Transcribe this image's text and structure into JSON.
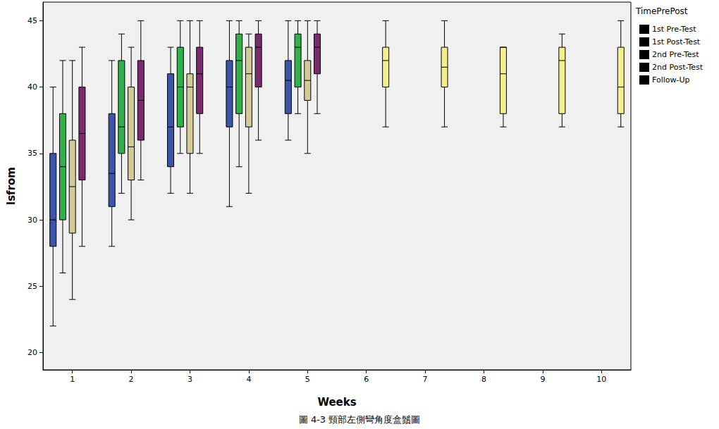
{
  "chart_data": {
    "type": "boxplot",
    "title": "圖 4-3 頸部左側彎角度盒鬚圖",
    "x_label": "Weeks",
    "y_label": "lsfrom",
    "legend_title": "TimePrePost",
    "legend": "right",
    "grid": false,
    "categories": [
      "1",
      "2",
      "3",
      "4",
      "5",
      "6",
      "7",
      "8",
      "9",
      "10"
    ],
    "ylim": [
      18.7,
      46.4
    ],
    "yticks": [
      20,
      25,
      30,
      35,
      40,
      45
    ],
    "series": [
      {
        "name": "1st Pre-Test",
        "color": "#3d55a8",
        "values": [
          [
            22,
            28,
            30,
            35,
            40
          ],
          [
            28,
            31,
            33.5,
            38,
            42
          ],
          [
            32,
            34,
            37,
            41,
            43
          ],
          [
            31,
            37,
            40,
            42,
            45
          ],
          [
            36,
            38,
            40.5,
            42,
            45
          ],
          null,
          null,
          null,
          null,
          null
        ]
      },
      {
        "name": "1st Post-Test",
        "color": "#2fb04a",
        "values": [
          [
            26,
            30,
            34,
            38,
            42
          ],
          [
            32,
            35,
            37,
            42,
            44
          ],
          [
            35,
            37,
            40,
            43,
            45
          ],
          [
            34,
            38,
            42,
            44,
            45
          ],
          [
            38,
            40,
            43,
            44,
            45
          ],
          null,
          null,
          null,
          null,
          null
        ]
      },
      {
        "name": "2nd Pre-Test",
        "color": "#d2ca97",
        "values": [
          [
            24,
            29,
            32.5,
            36,
            42
          ],
          [
            30,
            33,
            35.5,
            40,
            43
          ],
          [
            32,
            35,
            40,
            41,
            45
          ],
          [
            32,
            37,
            41,
            43,
            44
          ],
          [
            35,
            39,
            40.5,
            42,
            45
          ],
          null,
          null,
          null,
          null,
          null
        ]
      },
      {
        "name": "2nd Post-Test",
        "color": "#7a2a6e",
        "values": [
          [
            28,
            33,
            36.5,
            40,
            43
          ],
          [
            33,
            36,
            39,
            42,
            45
          ],
          [
            35,
            38,
            41,
            43,
            45
          ],
          [
            36,
            40,
            43,
            44,
            45
          ],
          [
            38,
            41,
            43,
            44,
            45
          ],
          null,
          null,
          null,
          null,
          null
        ]
      },
      {
        "name": "Follow-Up",
        "color": "#f2f08a",
        "values": [
          null,
          null,
          null,
          null,
          null,
          [
            37,
            40,
            42,
            43,
            45
          ],
          [
            37,
            40,
            41.5,
            43,
            45
          ],
          [
            37,
            38,
            41,
            43,
            43
          ],
          [
            37,
            38,
            42,
            43,
            44
          ],
          [
            37,
            38,
            40,
            43,
            45
          ]
        ]
      }
    ]
  }
}
